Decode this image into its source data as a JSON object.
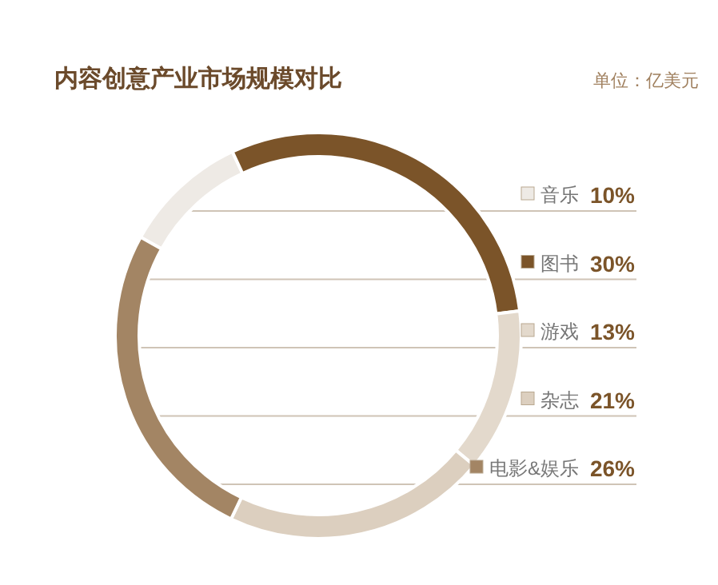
{
  "chart_data": {
    "type": "donut",
    "title": "内容创意产业市场规模对比",
    "subtitle": "单位：亿美元",
    "categories": [
      "音乐",
      "图书",
      "游戏",
      "杂志",
      "电影&娱乐"
    ],
    "values": [
      10,
      30,
      13,
      21,
      26
    ],
    "value_labels": [
      "10%",
      "30%",
      "13%",
      "21%",
      "26%"
    ],
    "colors": [
      "#eeeae5",
      "#7b5429",
      "#e3d9cc",
      "#dccfbf",
      "#a38564"
    ],
    "legend": "right"
  }
}
